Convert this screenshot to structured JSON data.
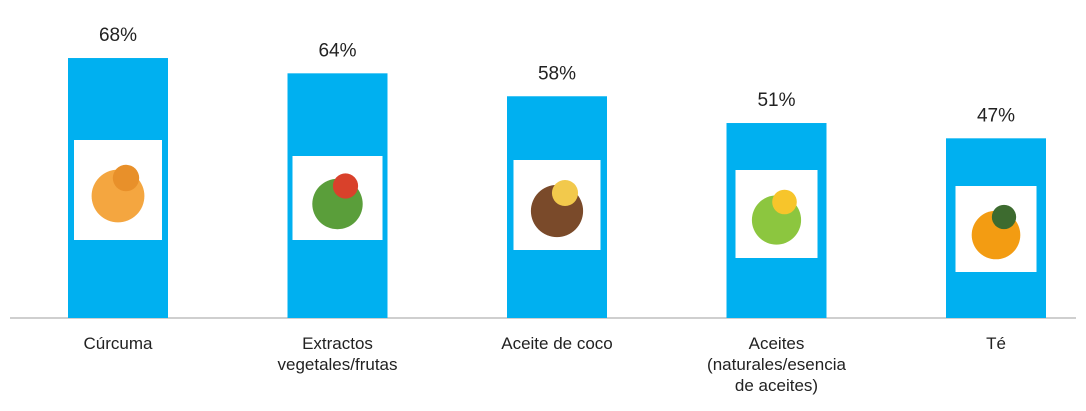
{
  "chart_data": {
    "type": "bar",
    "categories": [
      "Cúrcuma",
      "Extractos\nvegetales/frutas",
      "Aceite de coco",
      "Aceites\n(naturales/esencia\nde aceites)",
      "Té"
    ],
    "values": [
      68,
      64,
      58,
      51,
      47
    ],
    "value_labels": [
      "68%",
      "64%",
      "58%",
      "51%",
      "47%"
    ],
    "color": "#00b0f0"
  }
}
